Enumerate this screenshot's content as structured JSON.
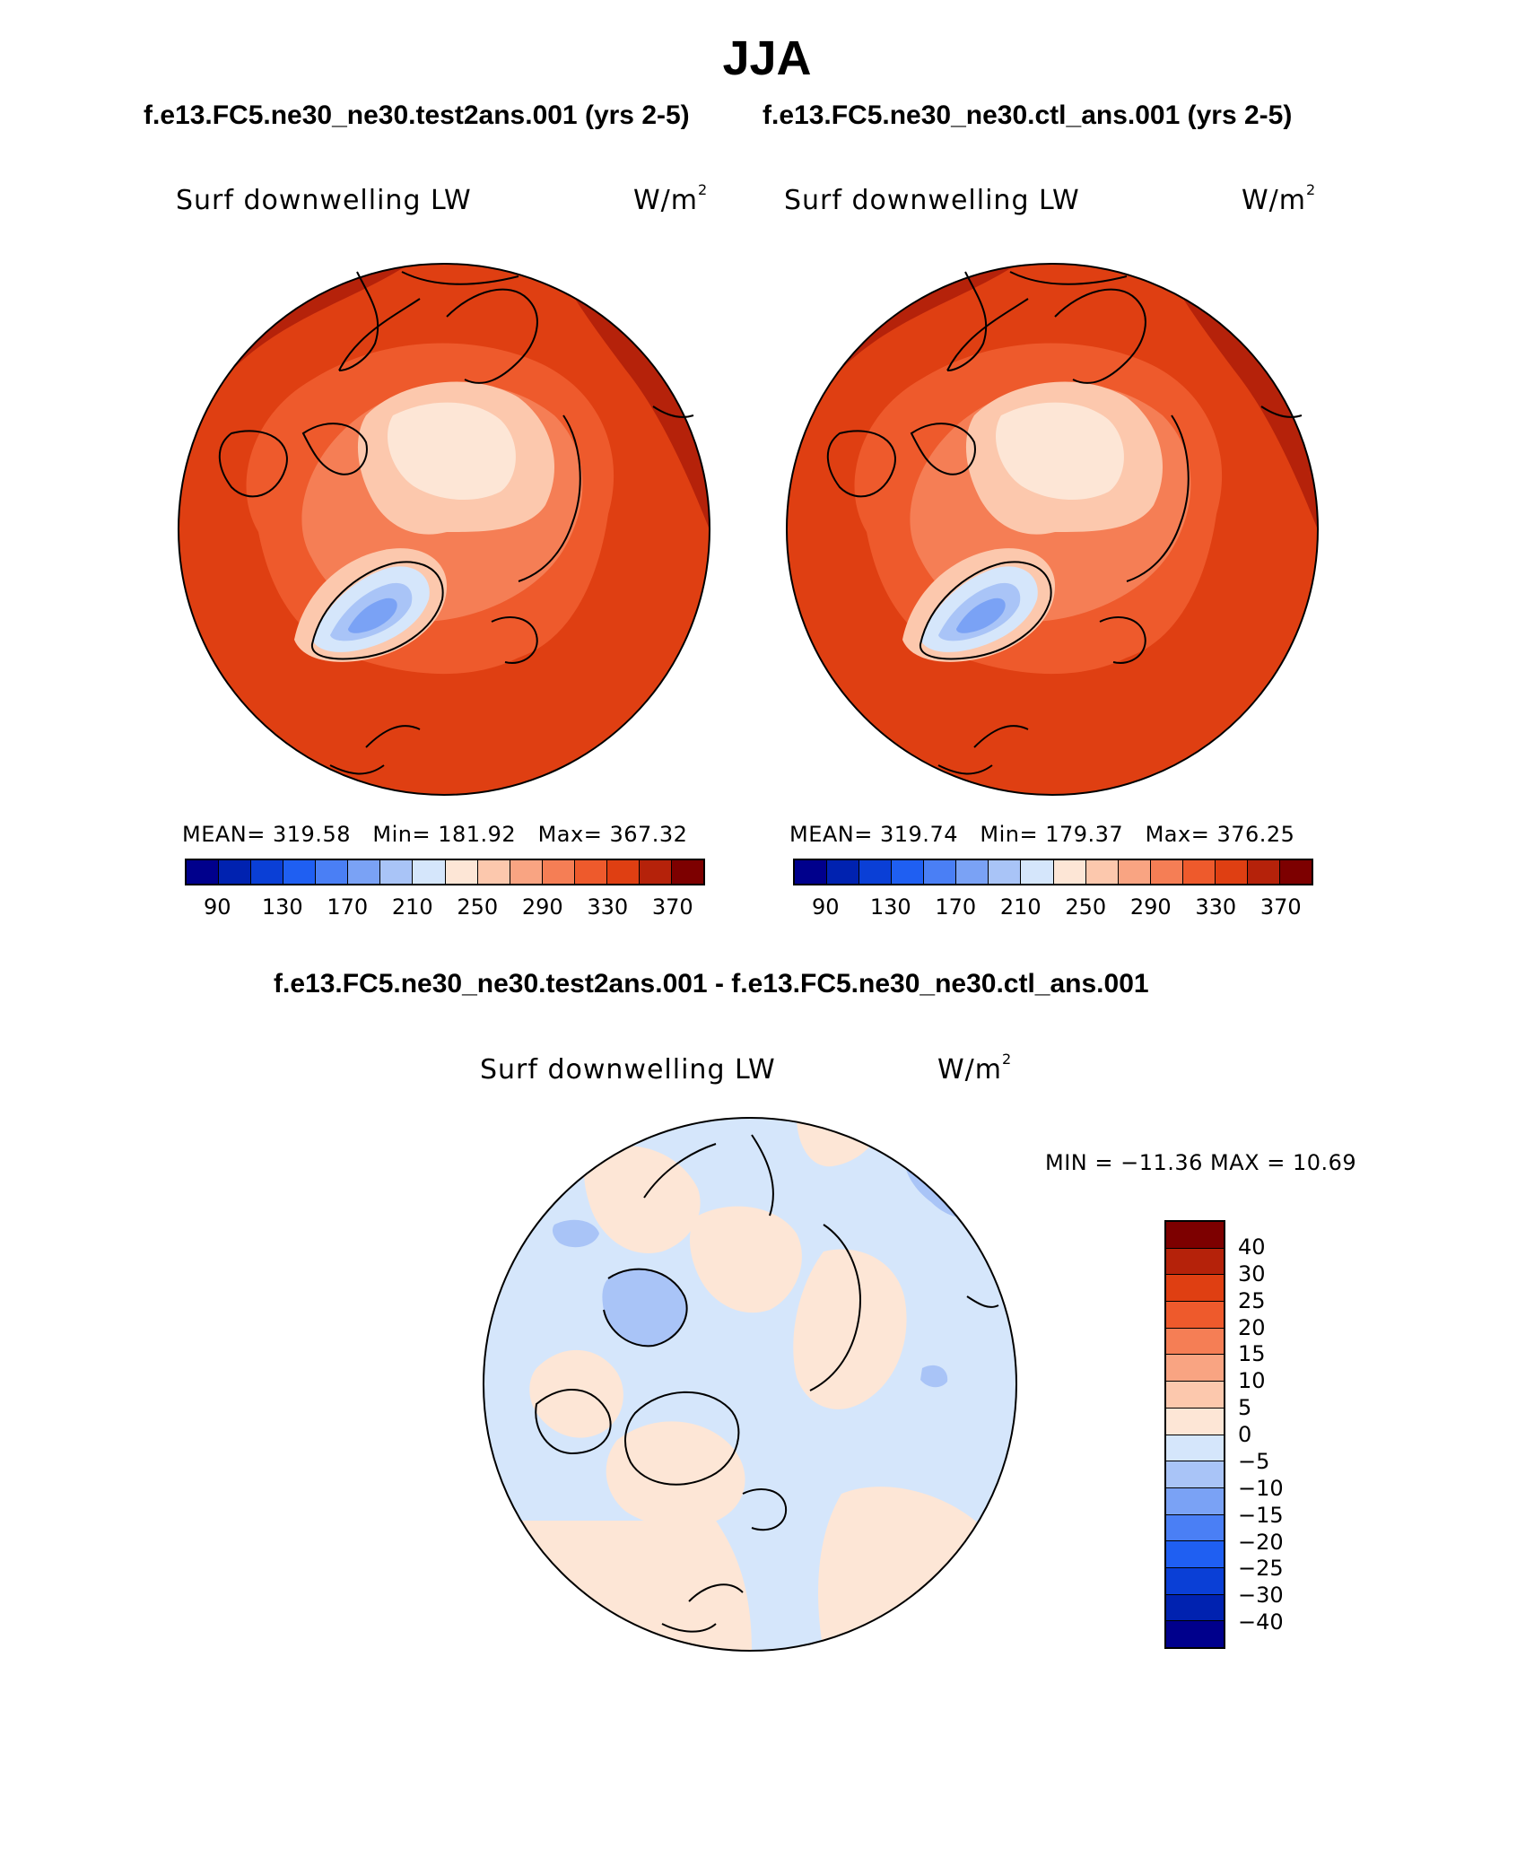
{
  "season": "JJA",
  "subtitle_left": "f.e13.FC5.ne30_ne30.test2ans.001 (yrs 2-5)",
  "subtitle_right": "f.e13.FC5.ne30_ne30.ctl_ans.001 (yrs 2-5)",
  "diff_title": "f.e13.FC5.ne30_ne30.test2ans.001 - f.e13.FC5.ne30_ne30.ctl_ans.001",
  "variable": "Surf downwelling LW",
  "units_base": "W/m",
  "units_exp": "2",
  "panels": {
    "test": {
      "mean_label": "MEAN=",
      "mean": "319.58",
      "min_label": "Min=",
      "min": "181.92",
      "max_label": "Max=",
      "max": "367.32"
    },
    "ctl": {
      "mean_label": "MEAN=",
      "mean": "319.74",
      "min_label": "Min=",
      "min": "179.37",
      "max_label": "Max=",
      "max": "376.25"
    },
    "diff": {
      "min_max_text": "MIN = −11.36 MAX =   10.69"
    }
  },
  "abs_colorbar": {
    "ticks": [
      "90",
      "130",
      "170",
      "210",
      "250",
      "290",
      "330",
      "370"
    ],
    "colors": [
      "#00008c",
      "#0022b0",
      "#0a3fd6",
      "#1f5ff2",
      "#4a7ff5",
      "#7aa2f5",
      "#a9c4f7",
      "#d5e6fb",
      "#fde6d6",
      "#fcc8ad",
      "#f9a482",
      "#f57e55",
      "#ee5a2c",
      "#df3f12",
      "#b5220a",
      "#7d0000"
    ]
  },
  "diff_colorbar": {
    "ticks": [
      "40",
      "30",
      "25",
      "20",
      "15",
      "10",
      "5",
      "0",
      "−5",
      "−10",
      "−15",
      "−20",
      "−25",
      "−30",
      "−40"
    ],
    "colors": [
      "#7d0000",
      "#b5220a",
      "#df3f12",
      "#ee5a2c",
      "#f57e55",
      "#f9a482",
      "#fcc8ad",
      "#fde6d6",
      "#d5e6fb",
      "#a9c4f7",
      "#7aa2f5",
      "#4a7ff5",
      "#1f5ff2",
      "#0a3fd6",
      "#0022b0",
      "#00008c"
    ]
  },
  "map_colors": {
    "abs_outer": "#df3f12",
    "abs_rim": "#b5220a",
    "abs_mid": "#ee5a2c",
    "abs_inner": "#f57e55",
    "abs_pole": "#fcc8ad",
    "abs_pole_core": "#fde6d6",
    "abs_greenland_1": "#d5e6fb",
    "abs_greenland_2": "#a9c4f7",
    "abs_greenland_3": "#7aa2f5",
    "diff_neg": "#d5e6fb",
    "diff_pos": "#fde6d6",
    "diff_neg2": "#a9c4f7"
  }
}
